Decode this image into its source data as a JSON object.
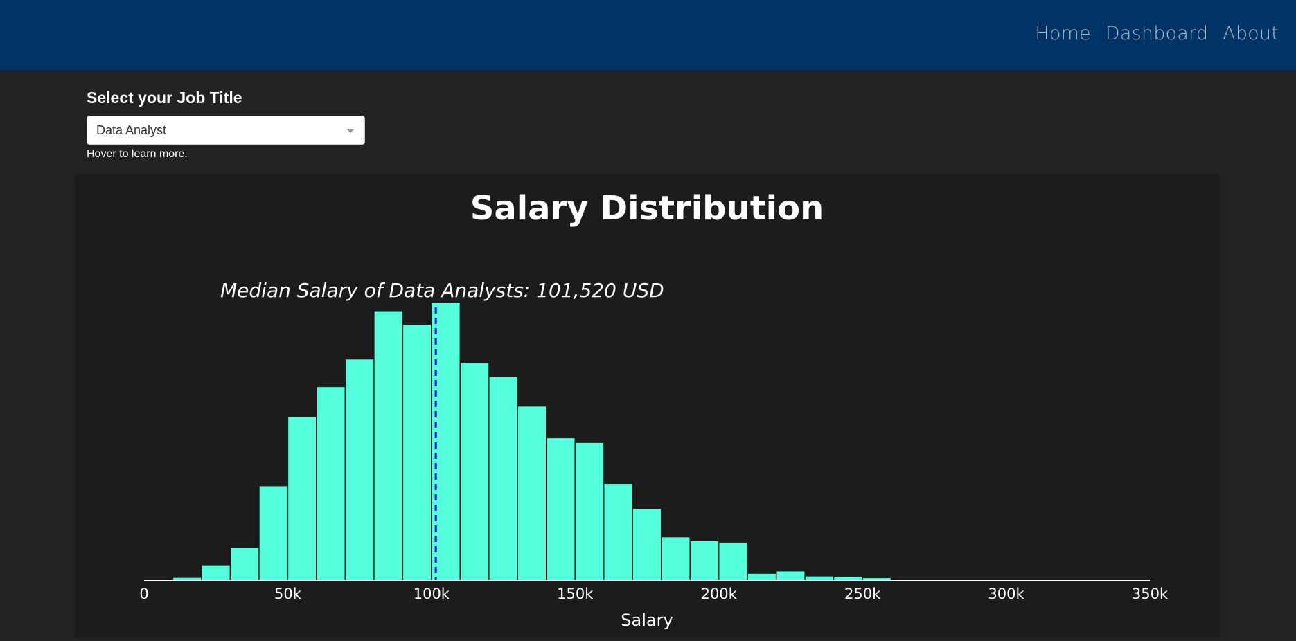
{
  "nav": {
    "links": [
      "Home",
      "Dashboard",
      "About"
    ]
  },
  "controls": {
    "label": "Select your Job Title",
    "selected": "Data Analyst",
    "hint": "Hover to learn more."
  },
  "chart_data": {
    "type": "bar",
    "title": "Salary Distribution",
    "annotation": "Median Salary of Data Analysts: 101,520 USD",
    "median": 101520,
    "xlabel": "Salary",
    "ylabel": "",
    "xlim": [
      0,
      350000
    ],
    "xticks": [
      0,
      50000,
      100000,
      150000,
      200000,
      250000,
      300000,
      350000
    ],
    "xtick_labels": [
      "0",
      "50k",
      "100k",
      "150k",
      "200k",
      "250k",
      "300k",
      "350k"
    ],
    "bin_width": 10000,
    "bin_starts": [
      0,
      10000,
      20000,
      30000,
      40000,
      50000,
      60000,
      70000,
      80000,
      90000,
      100000,
      110000,
      120000,
      130000,
      140000,
      150000,
      160000,
      170000,
      180000,
      190000,
      200000,
      210000,
      220000,
      230000,
      240000,
      250000,
      260000,
      270000,
      280000,
      290000,
      300000,
      310000,
      320000,
      330000,
      340000
    ],
    "counts": [
      0.3,
      1.2,
      5.5,
      11.4,
      32.7,
      56.5,
      66.8,
      76.3,
      92.9,
      88.2,
      95.8,
      75.1,
      70.4,
      60.1,
      49.2,
      47.6,
      33.5,
      24.8,
      15.1,
      13.8,
      13.3,
      2.6,
      3.4,
      1.7,
      1.6,
      1.1,
      0.3,
      0.2,
      0.4,
      0.3,
      0.3,
      0.3,
      0.2,
      0.2,
      0.3
    ],
    "ylim": [
      0,
      100
    ],
    "colors": {
      "bar": "#55ffdb",
      "median_line": "#1111cc",
      "panel": "#1c1c1c",
      "page": "#222222",
      "navbar": "#003366"
    }
  }
}
